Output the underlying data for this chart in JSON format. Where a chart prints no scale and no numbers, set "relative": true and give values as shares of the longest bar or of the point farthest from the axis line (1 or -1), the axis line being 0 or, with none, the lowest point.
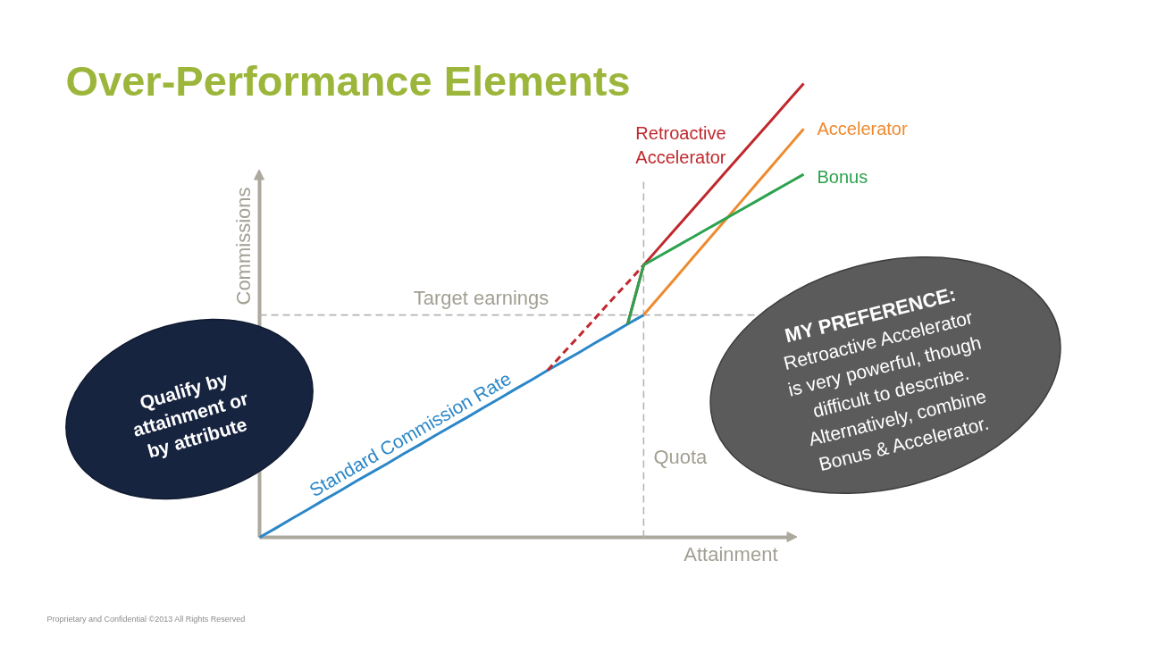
{
  "chart_data": {
    "type": "line",
    "title": "Over-Performance Elements",
    "xlabel": "Attainment",
    "ylabel": "Commissions",
    "relative": true,
    "categories": [
      null,
      null,
      null,
      null,
      null,
      null,
      null,
      null,
      null,
      null,
      null,
      null,
      null,
      null,
      null,
      null,
      null,
      null,
      null,
      null,
      null,
      null,
      null,
      null,
      null,
      null,
      null,
      null,
      null,
      null,
      null,
      null,
      null,
      null,
      null
    ],
    "series": [
      {
        "name": "Standard Commission Rate",
        "color": "#2b87c8",
        "values": [
          0,
          0.02,
          0.041,
          0.061,
          0.082,
          0.102,
          0.123,
          0.143,
          0.163,
          0.184,
          0.204,
          0.225,
          0.245,
          0.265,
          0.286,
          0.306,
          0.327,
          0.347,
          0.368,
          0.388,
          0.408,
          0.429,
          0.449,
          0.47,
          0.49,
          null,
          null,
          null,
          null,
          null,
          null,
          null,
          null,
          null,
          null
        ]
      },
      {
        "color": "#c0282d",
        "line_style": "dashed",
        "values": [
          null,
          null,
          null,
          null,
          null,
          null,
          null,
          null,
          null,
          null,
          null,
          null,
          null,
          null,
          null,
          null,
          null,
          null,
          0.368,
          0.407,
          0.445,
          0.484,
          0.523,
          0.561,
          0.6,
          null,
          null,
          null,
          null,
          null,
          null,
          null,
          null,
          null,
          null
        ]
      },
      {
        "name": "Retroactive Accelerator",
        "color": "#c0282d",
        "values": [
          null,
          null,
          null,
          null,
          null,
          null,
          null,
          null,
          null,
          null,
          null,
          null,
          null,
          null,
          null,
          null,
          null,
          null,
          null,
          null,
          null,
          null,
          null,
          0.47,
          0.6,
          0.64,
          0.68,
          0.72,
          0.76,
          0.8,
          0.84,
          0.88,
          0.92,
          0.96,
          1
        ]
      },
      {
        "name": "Accelerator",
        "color": "#ee8a2f",
        "values": [
          null,
          null,
          null,
          null,
          null,
          null,
          null,
          null,
          null,
          null,
          null,
          null,
          null,
          null,
          null,
          null,
          null,
          null,
          null,
          null,
          null,
          null,
          null,
          null,
          0.49,
          0.531,
          0.572,
          0.613,
          0.654,
          0.695,
          0.736,
          0.777,
          0.818,
          0.859,
          0.9
        ]
      },
      {
        "name": "Bonus",
        "color": "#2ca24f",
        "values": [
          null,
          null,
          null,
          null,
          null,
          null,
          null,
          null,
          null,
          null,
          null,
          null,
          null,
          null,
          null,
          null,
          null,
          null,
          null,
          null,
          null,
          null,
          null,
          0.47,
          0.6,
          0.62,
          0.64,
          0.66,
          0.68,
          0.7,
          0.72,
          0.74,
          0.76,
          0.78,
          0.8
        ]
      }
    ],
    "ref_lines": [
      {
        "axis": "y",
        "value": 0.49,
        "label": "Target earnings",
        "color": "#b4b4b4",
        "line_style": "dashed"
      }
    ],
    "annotations": [
      "Quota",
      "Qualify by attainment or by attribute",
      "MY PREFERENCE:",
      "Retroactive Accelerator is very powerful, though difficult to describe. Alternatively, combine Bonus & Accelerator.",
      "Proprietary and Confidential ©2013 All Rights Reserved"
    ]
  }
}
